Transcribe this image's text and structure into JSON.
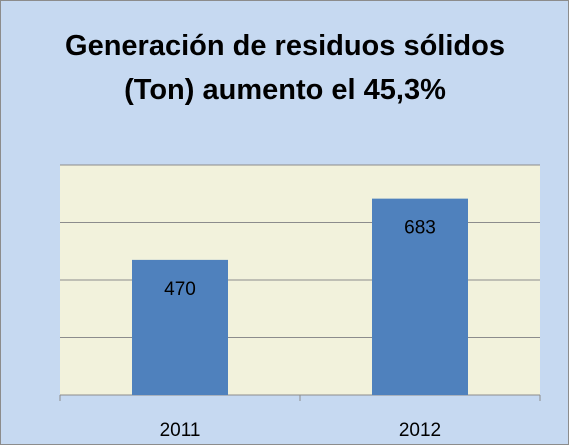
{
  "chart_data": {
    "type": "bar",
    "title": "Generación de residuos sólidos (Ton) aumento el 45,3%",
    "categories": [
      "2011",
      "2012"
    ],
    "values": [
      470,
      683
    ],
    "color": "#4f81bd",
    "ylim": [
      0,
      800
    ],
    "yticks": [
      0,
      200,
      400,
      600,
      800
    ],
    "grid": true
  }
}
